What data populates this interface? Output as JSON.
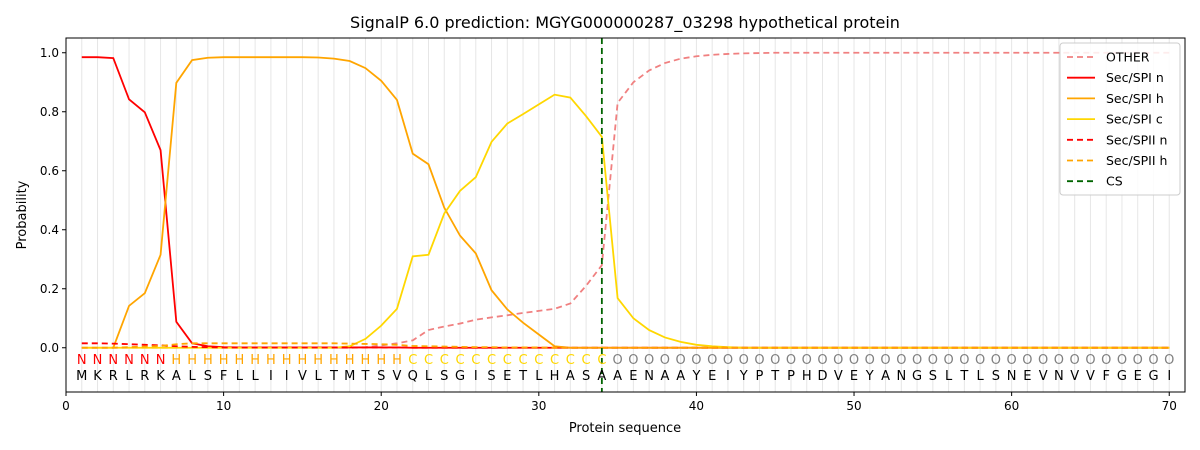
{
  "chart_data": {
    "type": "line",
    "title": "SignalP 6.0 prediction: MGYG000000287_03298 hypothetical protein",
    "xlabel": "Protein sequence",
    "ylabel": "Probability",
    "xlim": [
      0,
      71
    ],
    "ylim": [
      -0.15,
      1.05
    ],
    "x_ticks": [
      0,
      10,
      20,
      30,
      40,
      50,
      60,
      70
    ],
    "y_ticks": [
      0.0,
      0.2,
      0.4,
      0.6,
      0.8,
      1.0
    ],
    "y_tick_labels": [
      "0.0",
      "0.2",
      "0.4",
      "0.6",
      "0.8",
      "1.0"
    ],
    "grid": "vertical lines at each residue",
    "legend_position": "top-right",
    "sequence": [
      "M",
      "K",
      "R",
      "L",
      "R",
      "K",
      "A",
      "L",
      "S",
      "F",
      "L",
      "L",
      "I",
      "I",
      "V",
      "L",
      "T",
      "M",
      "T",
      "S",
      "V",
      "Q",
      "L",
      "S",
      "G",
      "I",
      "S",
      "E",
      "T",
      "L",
      "H",
      "A",
      "S",
      "A",
      "A",
      "E",
      "N",
      "A",
      "A",
      "Y",
      "E",
      "I",
      "Y",
      "P",
      "T",
      "P",
      "H",
      "D",
      "V",
      "E",
      "Y",
      "A",
      "N",
      "G",
      "S",
      "L",
      "T",
      "L",
      "S",
      "N",
      "E",
      "V",
      "N",
      "V",
      "V",
      "F",
      "G",
      "E",
      "G",
      "I"
    ],
    "labels": [
      "N",
      "N",
      "N",
      "N",
      "N",
      "N",
      "H",
      "H",
      "H",
      "H",
      "H",
      "H",
      "H",
      "H",
      "H",
      "H",
      "H",
      "H",
      "H",
      "H",
      "H",
      "C",
      "C",
      "C",
      "C",
      "C",
      "C",
      "C",
      "C",
      "C",
      "C",
      "C",
      "C",
      "C",
      "O",
      "O",
      "O",
      "O",
      "O",
      "O",
      "O",
      "O",
      "O",
      "O",
      "O",
      "O",
      "O",
      "O",
      "O",
      "O",
      "O",
      "O",
      "O",
      "O",
      "O",
      "O",
      "O",
      "O",
      "O",
      "O",
      "O",
      "O",
      "O",
      "O",
      "O",
      "O",
      "O",
      "O",
      "O",
      "O"
    ],
    "label_colors": {
      "N": "#ff0000",
      "H": "#ffa500",
      "C": "#ffd700",
      "O": "#808080"
    },
    "cs_position": 34,
    "series": [
      {
        "name": "OTHER",
        "color": "#f08080",
        "dash": true,
        "values": [
          0.0,
          0.0,
          0.0,
          0.0,
          0.0,
          0.0,
          0.0,
          0.0,
          0.0,
          0.0,
          0.0,
          0.0,
          0.0,
          0.0,
          0.0,
          0.0,
          0.0,
          0.0,
          0.002,
          0.008,
          0.015,
          0.025,
          0.06,
          0.072,
          0.082,
          0.095,
          0.103,
          0.11,
          0.118,
          0.125,
          0.132,
          0.15,
          0.21,
          0.28,
          0.83,
          0.9,
          0.94,
          0.965,
          0.98,
          0.988,
          0.993,
          0.996,
          0.998,
          0.999,
          1.0,
          1.0,
          1.0,
          1.0,
          1.0,
          1.0,
          1.0,
          1.0,
          1.0,
          1.0,
          1.0,
          1.0,
          1.0,
          1.0,
          1.0,
          1.0,
          1.0,
          1.0,
          1.0,
          1.0,
          1.0,
          1.0,
          1.0,
          1.0,
          1.0,
          1.0
        ]
      },
      {
        "name": "Sec/SPI n",
        "color": "#ff0000",
        "dash": false,
        "values": [
          0.985,
          0.985,
          0.982,
          0.842,
          0.798,
          0.67,
          0.088,
          0.015,
          0.005,
          0.002,
          0.001,
          0.001,
          0.001,
          0.001,
          0.001,
          0.001,
          0.001,
          0.001,
          0.001,
          0.001,
          0.001,
          0.0,
          0.0,
          0.0,
          0.0,
          0.0,
          0.0,
          0.0,
          0.0,
          0.0,
          0.0,
          0.0,
          0.0,
          0.0,
          0.0,
          0.0,
          0.0,
          0.0,
          0.0,
          0.0,
          0.0,
          0.0,
          0.0,
          0.0,
          0.0,
          0.0,
          0.0,
          0.0,
          0.0,
          0.0,
          0.0,
          0.0,
          0.0,
          0.0,
          0.0,
          0.0,
          0.0,
          0.0,
          0.0,
          0.0,
          0.0,
          0.0,
          0.0,
          0.0,
          0.0,
          0.0,
          0.0,
          0.0,
          0.0,
          0.0
        ]
      },
      {
        "name": "Sec/SPI h",
        "color": "#ffa500",
        "dash": false,
        "values": [
          0.0,
          0.0,
          0.0,
          0.142,
          0.185,
          0.315,
          0.898,
          0.975,
          0.983,
          0.985,
          0.985,
          0.985,
          0.985,
          0.985,
          0.985,
          0.984,
          0.98,
          0.972,
          0.948,
          0.905,
          0.84,
          0.658,
          0.622,
          0.475,
          0.38,
          0.32,
          0.195,
          0.13,
          0.085,
          0.045,
          0.005,
          0.0,
          0.0,
          0.0,
          0.0,
          0.0,
          0.0,
          0.0,
          0.0,
          0.0,
          0.0,
          0.0,
          0.0,
          0.0,
          0.0,
          0.0,
          0.0,
          0.0,
          0.0,
          0.0,
          0.0,
          0.0,
          0.0,
          0.0,
          0.0,
          0.0,
          0.0,
          0.0,
          0.0,
          0.0,
          0.0,
          0.0,
          0.0,
          0.0,
          0.0,
          0.0,
          0.0,
          0.0,
          0.0,
          0.0
        ]
      },
      {
        "name": "Sec/SPI c",
        "color": "#ffd700",
        "dash": false,
        "values": [
          0.0,
          0.0,
          0.0,
          0.0,
          0.0,
          0.0,
          0.0,
          0.0,
          0.0,
          0.0,
          0.0,
          0.0,
          0.0,
          0.0,
          0.0,
          0.0,
          0.0,
          0.005,
          0.03,
          0.075,
          0.132,
          0.31,
          0.315,
          0.455,
          0.532,
          0.578,
          0.698,
          0.76,
          0.792,
          0.825,
          0.858,
          0.848,
          0.785,
          0.715,
          0.168,
          0.1,
          0.06,
          0.035,
          0.02,
          0.01,
          0.005,
          0.002,
          0.0,
          0.0,
          0.0,
          0.0,
          0.0,
          0.0,
          0.0,
          0.0,
          0.0,
          0.0,
          0.0,
          0.0,
          0.0,
          0.0,
          0.0,
          0.0,
          0.0,
          0.0,
          0.0,
          0.0,
          0.0,
          0.0,
          0.0,
          0.0,
          0.0,
          0.0,
          0.0,
          0.0
        ]
      },
      {
        "name": "Sec/SPII n",
        "color": "#ff0000",
        "dash": true,
        "values": [
          0.015,
          0.015,
          0.014,
          0.012,
          0.01,
          0.008,
          0.005,
          0.003,
          0.002,
          0.001,
          0.001,
          0.001,
          0.001,
          0.001,
          0.001,
          0.001,
          0.001,
          0.001,
          0.001,
          0.001,
          0.001,
          0.0,
          0.0,
          0.0,
          0.0,
          0.0,
          0.0,
          0.0,
          0.0,
          0.0,
          0.0,
          0.0,
          0.0,
          0.0,
          0.0,
          0.0,
          0.0,
          0.0,
          0.0,
          0.0,
          0.0,
          0.0,
          0.0,
          0.0,
          0.0,
          0.0,
          0.0,
          0.0,
          0.0,
          0.0,
          0.0,
          0.0,
          0.0,
          0.0,
          0.0,
          0.0,
          0.0,
          0.0,
          0.0,
          0.0,
          0.0,
          0.0,
          0.0,
          0.0,
          0.0,
          0.0,
          0.0,
          0.0,
          0.0,
          0.0
        ]
      },
      {
        "name": "Sec/SPII h",
        "color": "#ffa500",
        "dash": true,
        "values": [
          0.0,
          0.0,
          0.0,
          0.002,
          0.004,
          0.006,
          0.012,
          0.015,
          0.015,
          0.015,
          0.015,
          0.015,
          0.015,
          0.015,
          0.015,
          0.015,
          0.015,
          0.014,
          0.013,
          0.012,
          0.01,
          0.006,
          0.005,
          0.004,
          0.003,
          0.002,
          0.002,
          0.001,
          0.001,
          0.001,
          0.0,
          0.0,
          0.0,
          0.0,
          0.0,
          0.0,
          0.0,
          0.0,
          0.0,
          0.0,
          0.0,
          0.0,
          0.0,
          0.0,
          0.0,
          0.0,
          0.0,
          0.0,
          0.0,
          0.0,
          0.0,
          0.0,
          0.0,
          0.0,
          0.0,
          0.0,
          0.0,
          0.0,
          0.0,
          0.0,
          0.0,
          0.0,
          0.0,
          0.0,
          0.0,
          0.0,
          0.0,
          0.0,
          0.0,
          0.0
        ]
      }
    ],
    "legend": [
      {
        "name": "OTHER",
        "color": "#f08080",
        "dash": true
      },
      {
        "name": "Sec/SPI n",
        "color": "#ff0000",
        "dash": false
      },
      {
        "name": "Sec/SPI h",
        "color": "#ffa500",
        "dash": false
      },
      {
        "name": "Sec/SPI c",
        "color": "#ffd700",
        "dash": false
      },
      {
        "name": "Sec/SPII n",
        "color": "#ff0000",
        "dash": true
      },
      {
        "name": "Sec/SPII h",
        "color": "#ffa500",
        "dash": true
      },
      {
        "name": "CS",
        "color": "#006400",
        "dash": true
      }
    ]
  }
}
